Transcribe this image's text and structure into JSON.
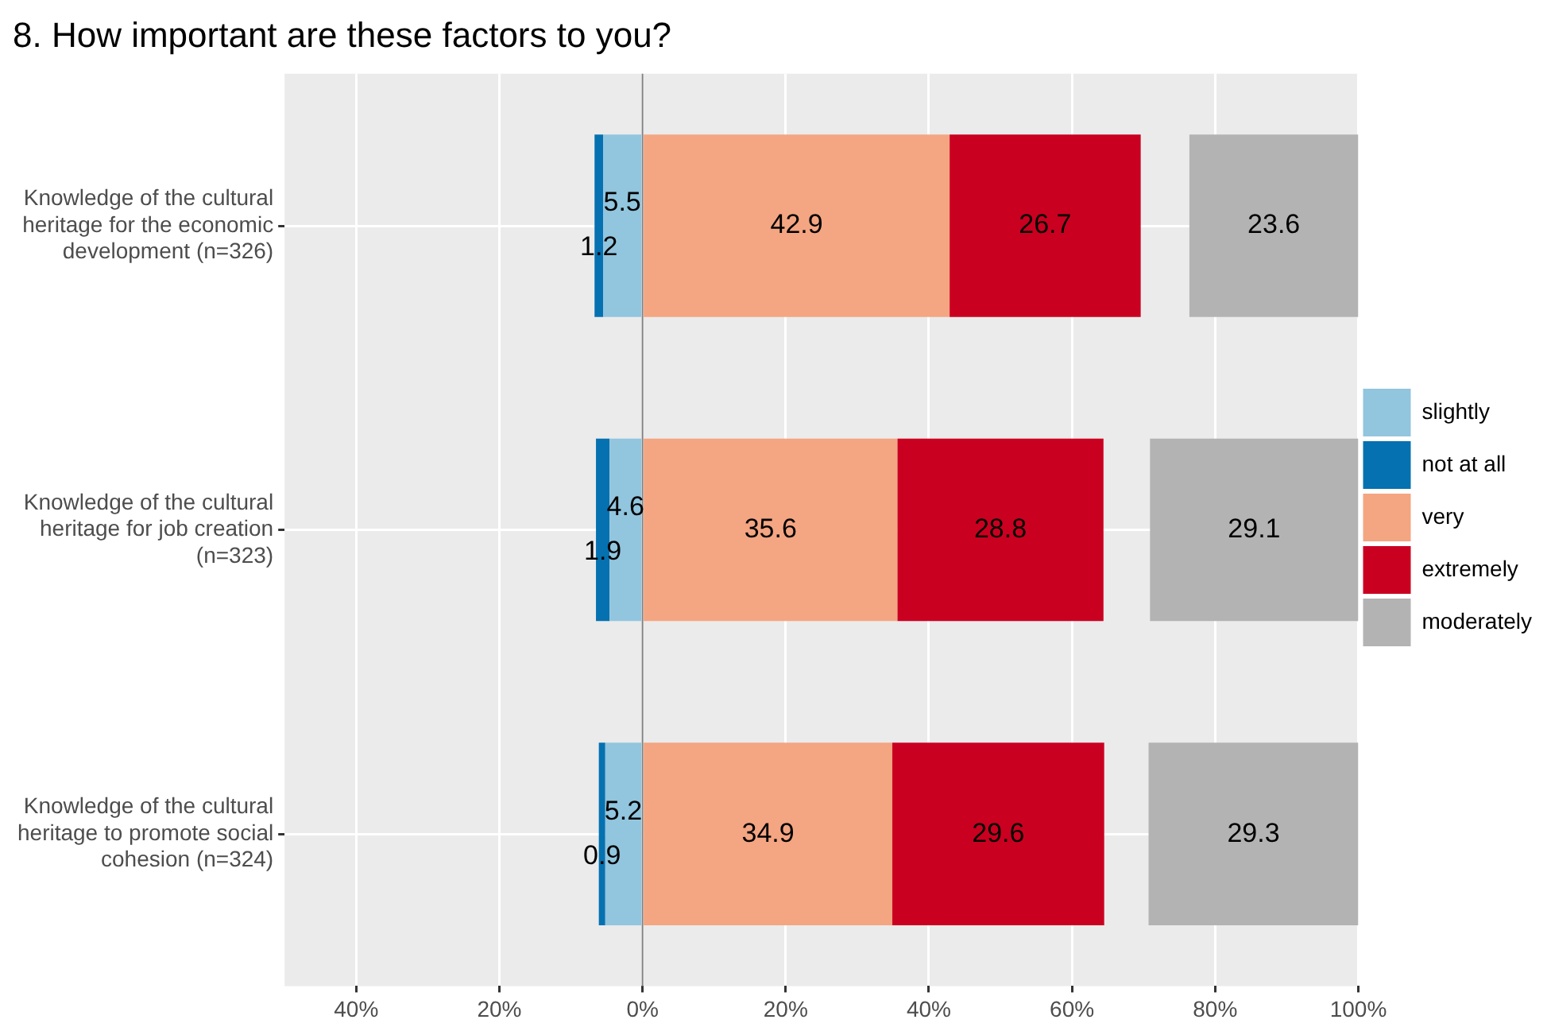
{
  "chart_data": {
    "type": "bar",
    "orientation": "horizontal",
    "title": "8. How important are these factors to you?",
    "categories": [
      "Knowledge of the cultural heritage for the economic development (n=326)",
      "Knowledge of the cultural heritage for job creation (n=323)",
      "Knowledge of the cultural heritage to promote social cohesion (n=324)"
    ],
    "series": [
      {
        "name": "slightly",
        "color": "#92c5de",
        "values": [
          5.5,
          4.6,
          5.2
        ],
        "base": [
          -5.5,
          -4.6,
          -5.2
        ],
        "value_labels": [
          "5.5",
          "4.6",
          "5.2"
        ]
      },
      {
        "name": "not at all",
        "color": "#0571b0",
        "values": [
          1.2,
          1.9,
          0.9
        ],
        "base": [
          -6.7,
          -6.5,
          -6.1
        ],
        "value_labels": [
          "1.2",
          "1.9",
          "0.9"
        ]
      },
      {
        "name": "very",
        "color": "#f4a582",
        "values": [
          42.9,
          35.6,
          34.9
        ],
        "base": [
          0,
          0,
          0
        ],
        "value_labels": [
          "42.9",
          "35.6",
          "34.9"
        ]
      },
      {
        "name": "extremely",
        "color": "#ca0020",
        "values": [
          26.7,
          28.8,
          29.6
        ],
        "base": [
          42.9,
          35.6,
          34.9
        ],
        "value_labels": [
          "26.7",
          "28.8",
          "29.6"
        ]
      },
      {
        "name": "moderately",
        "color": "#b3b3b3",
        "values": [
          23.6,
          29.1,
          29.3
        ],
        "base": [
          76.4,
          70.9,
          70.7
        ],
        "value_labels": [
          "23.6",
          "29.1",
          "29.3"
        ]
      }
    ],
    "xlim": [
      -50,
      100
    ],
    "xticks": [
      {
        "value": -40,
        "label": "40%"
      },
      {
        "value": -20,
        "label": "20%"
      },
      {
        "value": 0,
        "label": "0%"
      },
      {
        "value": 20,
        "label": "20%"
      },
      {
        "value": 40,
        "label": "40%"
      },
      {
        "value": 60,
        "label": "60%"
      },
      {
        "value": 80,
        "label": "80%"
      },
      {
        "value": 100,
        "label": "100%"
      }
    ],
    "ref_lines": [
      {
        "axis": "x",
        "value": 0,
        "color": "#808080"
      }
    ],
    "grid": true,
    "legend": "right"
  }
}
